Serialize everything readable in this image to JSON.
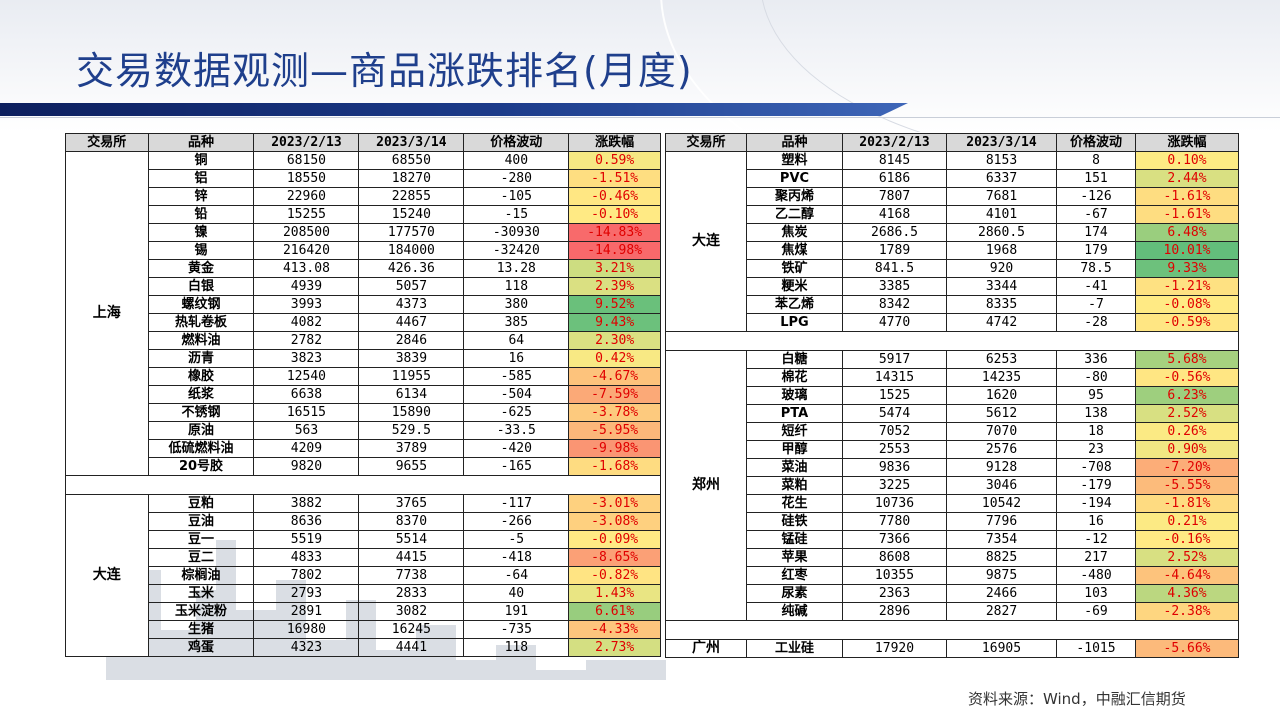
{
  "title": "交易数据观测—商品涨跌排名(月度)",
  "source": "资料来源：Wind，中融汇信期货",
  "headers": [
    "交易所",
    "品种",
    "2023/2/13",
    "2023/3/14",
    "价格波动",
    "涨跌幅"
  ],
  "colors": {
    "title": "#1f3f8c",
    "neg_strong": "#f8696b",
    "neutral": "#ffeb84",
    "pos_strong": "#63be7b",
    "pct_text": "#e00000"
  },
  "left_groups": [
    {
      "exchange": "上海",
      "rows": [
        {
          "name": "铜",
          "p1": "68150",
          "p2": "68550",
          "chg": "400",
          "pct": "0.59%",
          "v": 0.59
        },
        {
          "name": "铝",
          "p1": "18550",
          "p2": "18270",
          "chg": "-280",
          "pct": "-1.51%",
          "v": -1.51
        },
        {
          "name": "锌",
          "p1": "22960",
          "p2": "22855",
          "chg": "-105",
          "pct": "-0.46%",
          "v": -0.46
        },
        {
          "name": "铅",
          "p1": "15255",
          "p2": "15240",
          "chg": "-15",
          "pct": "-0.10%",
          "v": -0.1
        },
        {
          "name": "镍",
          "p1": "208500",
          "p2": "177570",
          "chg": "-30930",
          "pct": "-14.83%",
          "v": -14.83
        },
        {
          "name": "锡",
          "p1": "216420",
          "p2": "184000",
          "chg": "-32420",
          "pct": "-14.98%",
          "v": -14.98
        },
        {
          "name": "黄金",
          "p1": "413.08",
          "p2": "426.36",
          "chg": "13.28",
          "pct": "3.21%",
          "v": 3.21
        },
        {
          "name": "白银",
          "p1": "4939",
          "p2": "5057",
          "chg": "118",
          "pct": "2.39%",
          "v": 2.39
        },
        {
          "name": "螺纹钢",
          "p1": "3993",
          "p2": "4373",
          "chg": "380",
          "pct": "9.52%",
          "v": 9.52
        },
        {
          "name": "热轧卷板",
          "p1": "4082",
          "p2": "4467",
          "chg": "385",
          "pct": "9.43%",
          "v": 9.43
        },
        {
          "name": "燃料油",
          "p1": "2782",
          "p2": "2846",
          "chg": "64",
          "pct": "2.30%",
          "v": 2.3
        },
        {
          "name": "沥青",
          "p1": "3823",
          "p2": "3839",
          "chg": "16",
          "pct": "0.42%",
          "v": 0.42
        },
        {
          "name": "橡胶",
          "p1": "12540",
          "p2": "11955",
          "chg": "-585",
          "pct": "-4.67%",
          "v": -4.67
        },
        {
          "name": "纸浆",
          "p1": "6638",
          "p2": "6134",
          "chg": "-504",
          "pct": "-7.59%",
          "v": -7.59
        },
        {
          "name": "不锈钢",
          "p1": "16515",
          "p2": "15890",
          "chg": "-625",
          "pct": "-3.78%",
          "v": -3.78
        },
        {
          "name": "原油",
          "p1": "563",
          "p2": "529.5",
          "chg": "-33.5",
          "pct": "-5.95%",
          "v": -5.95
        },
        {
          "name": "低硫燃料油",
          "p1": "4209",
          "p2": "3789",
          "chg": "-420",
          "pct": "-9.98%",
          "v": -9.98
        },
        {
          "name": "20号胶",
          "p1": "9820",
          "p2": "9655",
          "chg": "-165",
          "pct": "-1.68%",
          "v": -1.68
        }
      ]
    },
    {
      "exchange": "大连",
      "rows": [
        {
          "name": "豆粕",
          "p1": "3882",
          "p2": "3765",
          "chg": "-117",
          "pct": "-3.01%",
          "v": -3.01
        },
        {
          "name": "豆油",
          "p1": "8636",
          "p2": "8370",
          "chg": "-266",
          "pct": "-3.08%",
          "v": -3.08
        },
        {
          "name": "豆一",
          "p1": "5519",
          "p2": "5514",
          "chg": "-5",
          "pct": "-0.09%",
          "v": -0.09
        },
        {
          "name": "豆二",
          "p1": "4833",
          "p2": "4415",
          "chg": "-418",
          "pct": "-8.65%",
          "v": -8.65
        },
        {
          "name": "棕榈油",
          "p1": "7802",
          "p2": "7738",
          "chg": "-64",
          "pct": "-0.82%",
          "v": -0.82
        },
        {
          "name": "玉米",
          "p1": "2793",
          "p2": "2833",
          "chg": "40",
          "pct": "1.43%",
          "v": 1.43
        },
        {
          "name": "玉米淀粉",
          "p1": "2891",
          "p2": "3082",
          "chg": "191",
          "pct": "6.61%",
          "v": 6.61
        },
        {
          "name": "生猪",
          "p1": "16980",
          "p2": "16245",
          "chg": "-735",
          "pct": "-4.33%",
          "v": -4.33
        },
        {
          "name": "鸡蛋",
          "p1": "4323",
          "p2": "4441",
          "chg": "118",
          "pct": "2.73%",
          "v": 2.73
        }
      ]
    }
  ],
  "right_groups": [
    {
      "exchange": "大连",
      "rows": [
        {
          "name": "塑料",
          "p1": "8145",
          "p2": "8153",
          "chg": "8",
          "pct": "0.10%",
          "v": 0.1
        },
        {
          "name": "PVC",
          "p1": "6186",
          "p2": "6337",
          "chg": "151",
          "pct": "2.44%",
          "v": 2.44
        },
        {
          "name": "聚丙烯",
          "p1": "7807",
          "p2": "7681",
          "chg": "-126",
          "pct": "-1.61%",
          "v": -1.61
        },
        {
          "name": "乙二醇",
          "p1": "4168",
          "p2": "4101",
          "chg": "-67",
          "pct": "-1.61%",
          "v": -1.61
        },
        {
          "name": "焦炭",
          "p1": "2686.5",
          "p2": "2860.5",
          "chg": "174",
          "pct": "6.48%",
          "v": 6.48
        },
        {
          "name": "焦煤",
          "p1": "1789",
          "p2": "1968",
          "chg": "179",
          "pct": "10.01%",
          "v": 10.01
        },
        {
          "name": "铁矿",
          "p1": "841.5",
          "p2": "920",
          "chg": "78.5",
          "pct": "9.33%",
          "v": 9.33
        },
        {
          "name": "粳米",
          "p1": "3385",
          "p2": "3344",
          "chg": "-41",
          "pct": "-1.21%",
          "v": -1.21
        },
        {
          "name": "苯乙烯",
          "p1": "8342",
          "p2": "8335",
          "chg": "-7",
          "pct": "-0.08%",
          "v": -0.08
        },
        {
          "name": "LPG",
          "p1": "4770",
          "p2": "4742",
          "chg": "-28",
          "pct": "-0.59%",
          "v": -0.59
        }
      ]
    },
    {
      "exchange": "郑州",
      "rows": [
        {
          "name": "白糖",
          "p1": "5917",
          "p2": "6253",
          "chg": "336",
          "pct": "5.68%",
          "v": 5.68
        },
        {
          "name": "棉花",
          "p1": "14315",
          "p2": "14235",
          "chg": "-80",
          "pct": "-0.56%",
          "v": -0.56
        },
        {
          "name": "玻璃",
          "p1": "1525",
          "p2": "1620",
          "chg": "95",
          "pct": "6.23%",
          "v": 6.23
        },
        {
          "name": "PTA",
          "p1": "5474",
          "p2": "5612",
          "chg": "138",
          "pct": "2.52%",
          "v": 2.52
        },
        {
          "name": "短纤",
          "p1": "7052",
          "p2": "7070",
          "chg": "18",
          "pct": "0.26%",
          "v": 0.26
        },
        {
          "name": "甲醇",
          "p1": "2553",
          "p2": "2576",
          "chg": "23",
          "pct": "0.90%",
          "v": 0.9
        },
        {
          "name": "菜油",
          "p1": "9836",
          "p2": "9128",
          "chg": "-708",
          "pct": "-7.20%",
          "v": -7.2
        },
        {
          "name": "菜粕",
          "p1": "3225",
          "p2": "3046",
          "chg": "-179",
          "pct": "-5.55%",
          "v": -5.55
        },
        {
          "name": "花生",
          "p1": "10736",
          "p2": "10542",
          "chg": "-194",
          "pct": "-1.81%",
          "v": -1.81
        },
        {
          "name": "硅铁",
          "p1": "7780",
          "p2": "7796",
          "chg": "16",
          "pct": "0.21%",
          "v": 0.21
        },
        {
          "name": "锰硅",
          "p1": "7366",
          "p2": "7354",
          "chg": "-12",
          "pct": "-0.16%",
          "v": -0.16
        },
        {
          "name": "苹果",
          "p1": "8608",
          "p2": "8825",
          "chg": "217",
          "pct": "2.52%",
          "v": 2.52
        },
        {
          "name": "红枣",
          "p1": "10355",
          "p2": "9875",
          "chg": "-480",
          "pct": "-4.64%",
          "v": -4.64
        },
        {
          "name": "尿素",
          "p1": "2363",
          "p2": "2466",
          "chg": "103",
          "pct": "4.36%",
          "v": 4.36
        },
        {
          "name": "纯碱",
          "p1": "2896",
          "p2": "2827",
          "chg": "-69",
          "pct": "-2.38%",
          "v": -2.38
        }
      ]
    },
    {
      "exchange": "广州",
      "rows": [
        {
          "name": "工业硅",
          "p1": "17920",
          "p2": "16905",
          "chg": "-1015",
          "pct": "-5.66%",
          "v": -5.66
        }
      ]
    }
  ]
}
